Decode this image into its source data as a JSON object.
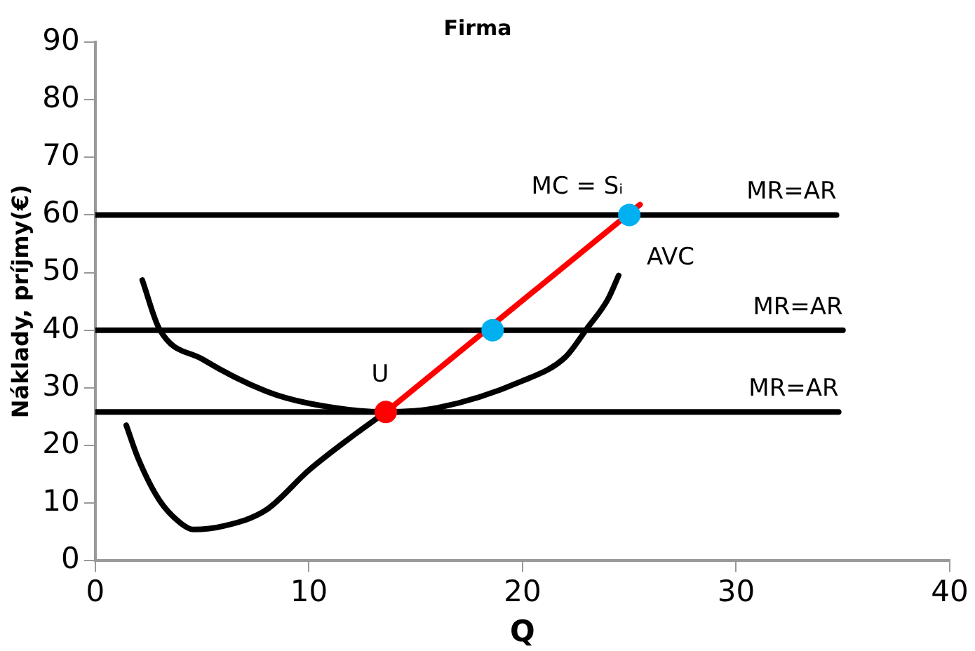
{
  "chart_data": {
    "type": "line",
    "title": "Firma",
    "xlabel": "Q",
    "ylabel": "Náklady, príjmy(€)",
    "xlim": [
      0,
      40
    ],
    "xticks": [
      0,
      10,
      20,
      30,
      40
    ],
    "ylim": [
      0,
      90
    ],
    "yticks": [
      0,
      10,
      20,
      30,
      40,
      50,
      60,
      70,
      80,
      90
    ],
    "grid": false,
    "legend": false,
    "line_style": "solid",
    "series": [
      {
        "name": "MR=AR",
        "color": "#000000",
        "x": [
          0,
          34.7
        ],
        "values": [
          60,
          60
        ]
      },
      {
        "name": "MR=AR",
        "color": "#000000",
        "x": [
          0,
          35
        ],
        "values": [
          40,
          40
        ]
      },
      {
        "name": "MR=AR",
        "color": "#000000",
        "x": [
          0,
          34.8
        ],
        "values": [
          25.8,
          25.8
        ]
      },
      {
        "color": "#000000",
        "x": [
          1.45,
          2,
          3,
          4,
          4.6,
          6,
          8,
          10,
          12,
          13.6
        ],
        "values": [
          23.5,
          17.8,
          10.5,
          6.5,
          5.4,
          6,
          8.8,
          15.7,
          21.5,
          25.8
        ]
      },
      {
        "name": "AVC",
        "color": "#000000",
        "x": [
          2.2,
          3,
          5,
          8,
          10,
          13.6,
          16,
          20,
          22,
          23,
          24,
          24.5
        ],
        "values": [
          48.7,
          40.2,
          35,
          29.4,
          27.3,
          25.8,
          26.5,
          31.2,
          35.3,
          40.2,
          45.4,
          49.5
        ]
      },
      {
        "name": "MC = Sᵢ",
        "color": "#ff0000",
        "x": [
          13.6,
          25.5
        ],
        "values": [
          25.8,
          61.8
        ]
      },
      {
        "type": "scatter",
        "name": "U",
        "marker": "circle",
        "color": "#ff0000",
        "x": [
          13.6
        ],
        "values": [
          25.8
        ]
      },
      {
        "type": "scatter",
        "marker": "circle",
        "color": "#00b0f0",
        "x": [
          18.6,
          25
        ],
        "values": [
          40,
          60
        ]
      }
    ]
  }
}
